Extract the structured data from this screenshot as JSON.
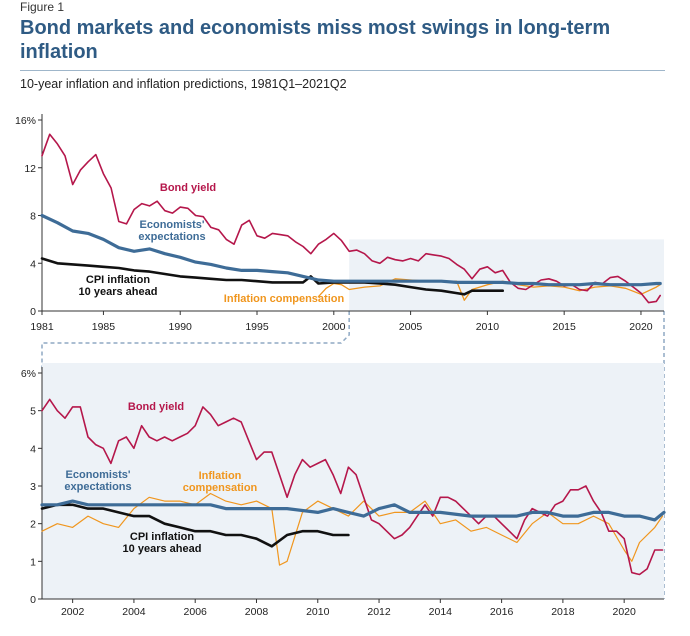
{
  "figure_label": "Figure 1",
  "title": "Bond markets and economists miss most swings in long-term inflation",
  "subtitle": "10-year inflation and inflation predictions, 1981Q1–2021Q2",
  "colors": {
    "bond": "#b5174b",
    "econ": "#3e6c97",
    "cpi": "#111111",
    "comp": "#f0961e",
    "shade": "#edf2f7",
    "frame": "#8fa9c4"
  },
  "chart_data": [
    {
      "type": "line",
      "panel": "top",
      "xlim": [
        1981,
        2021.5
      ],
      "ylim": [
        0,
        16
      ],
      "x_ticks": [
        "1981",
        "1985",
        "1990",
        "1995",
        "2000",
        "2005",
        "2010",
        "2015",
        "2020"
      ],
      "x_tick_values": [
        1981,
        1985,
        1990,
        1995,
        2000,
        2005,
        2010,
        2015,
        2020
      ],
      "y_ticks": [
        "0",
        "4",
        "8",
        "12",
        "16%"
      ],
      "y_tick_values": [
        0,
        4,
        8,
        12,
        16
      ],
      "shaded_range": [
        2001,
        2021.5
      ],
      "series": [
        {
          "name": "Bond yield",
          "key": "bond",
          "x": [
            1981,
            1981.5,
            1982,
            1982.5,
            1983,
            1983.5,
            1984,
            1984.5,
            1985,
            1985.5,
            1986,
            1986.5,
            1987,
            1987.5,
            1988,
            1988.5,
            1989,
            1989.5,
            1990,
            1990.5,
            1991,
            1991.5,
            1992,
            1992.5,
            1993,
            1993.5,
            1994,
            1994.5,
            1995,
            1995.5,
            1996,
            1996.5,
            1997,
            1997.5,
            1998,
            1998.5,
            1999,
            1999.5,
            2000,
            2000.5,
            2001,
            2001.5,
            2002,
            2002.5,
            2003,
            2003.5,
            2004,
            2004.5,
            2005,
            2005.5,
            2006,
            2006.5,
            2007,
            2007.5,
            2008,
            2008.5,
            2009,
            2009.5,
            2010,
            2010.5,
            2011,
            2011.5,
            2012,
            2012.5,
            2013,
            2013.5,
            2014,
            2014.5,
            2015,
            2015.5,
            2016,
            2016.5,
            2017,
            2017.5,
            2018,
            2018.5,
            2019,
            2019.5,
            2020,
            2020.5,
            2021,
            2021.25
          ],
          "y": [
            13.0,
            14.8,
            14.0,
            13.0,
            10.6,
            11.8,
            12.5,
            13.1,
            11.5,
            10.3,
            7.5,
            7.3,
            8.5,
            9.0,
            8.8,
            9.2,
            8.4,
            8.2,
            8.7,
            8.6,
            8.0,
            7.9,
            7.0,
            6.8,
            6.0,
            5.6,
            7.2,
            7.6,
            6.3,
            6.1,
            6.5,
            6.4,
            6.3,
            5.8,
            5.4,
            4.8,
            5.6,
            6.0,
            6.5,
            5.9,
            5.0,
            5.1,
            4.8,
            4.2,
            4.0,
            4.5,
            4.3,
            4.2,
            4.4,
            4.2,
            4.8,
            4.7,
            4.6,
            4.4,
            3.9,
            3.5,
            2.7,
            3.5,
            3.7,
            3.2,
            3.4,
            2.4,
            1.9,
            1.8,
            2.2,
            2.6,
            2.7,
            2.5,
            2.1,
            2.2,
            1.8,
            1.7,
            2.4,
            2.3,
            2.8,
            2.9,
            2.5,
            2.0,
            1.5,
            0.7,
            0.8,
            1.3
          ]
        },
        {
          "name": "Economists' expectations",
          "key": "econ",
          "x": [
            1981,
            1982,
            1983,
            1984,
            1985,
            1986,
            1987,
            1988,
            1989,
            1990,
            1991,
            1992,
            1993,
            1994,
            1995,
            1996,
            1997,
            1998,
            1999,
            2000,
            2001,
            2002,
            2003,
            2004,
            2005,
            2006,
            2007,
            2008,
            2009,
            2010,
            2011,
            2012,
            2013,
            2014,
            2015,
            2016,
            2017,
            2018,
            2019,
            2020,
            2021,
            2021.25
          ],
          "y": [
            8.0,
            7.4,
            6.7,
            6.5,
            6.0,
            5.3,
            5.0,
            5.2,
            4.8,
            4.5,
            4.1,
            3.9,
            3.6,
            3.4,
            3.4,
            3.3,
            3.2,
            2.9,
            2.6,
            2.5,
            2.5,
            2.5,
            2.5,
            2.5,
            2.5,
            2.5,
            2.5,
            2.4,
            2.4,
            2.4,
            2.4,
            2.3,
            2.3,
            2.2,
            2.2,
            2.2,
            2.3,
            2.2,
            2.2,
            2.2,
            2.3,
            2.3
          ]
        },
        {
          "name": "CPI inflation\n10 years ahead",
          "key": "cpi",
          "x": [
            1981,
            1982,
            1983,
            1984,
            1985,
            1986,
            1987,
            1988,
            1989,
            1990,
            1991,
            1992,
            1993,
            1994,
            1995,
            1996,
            1997,
            1998,
            1998.5,
            1999,
            2000,
            2001,
            2002,
            2003,
            2004,
            2005,
            2006,
            2007,
            2008,
            2008.5,
            2009,
            2010,
            2011
          ],
          "y": [
            4.4,
            4.0,
            3.9,
            3.8,
            3.7,
            3.6,
            3.4,
            3.3,
            3.1,
            2.9,
            2.8,
            2.7,
            2.6,
            2.6,
            2.5,
            2.4,
            2.4,
            2.4,
            2.9,
            2.3,
            2.4,
            2.4,
            2.4,
            2.3,
            2.2,
            2.0,
            1.8,
            1.7,
            1.5,
            1.4,
            1.7,
            1.7,
            1.7
          ]
        },
        {
          "name": "Inflation compensation",
          "key": "comp",
          "x": [
            1999,
            1999.5,
            2000,
            2000.5,
            2001,
            2002,
            2003,
            2004,
            2005,
            2006,
            2007,
            2008,
            2008.5,
            2009,
            2010,
            2011,
            2012,
            2013,
            2014,
            2015,
            2016,
            2017,
            2018,
            2019,
            2020,
            2021,
            2021.25
          ],
          "y": [
            1.2,
            1.9,
            2.3,
            2.2,
            1.8,
            2.0,
            2.1,
            2.7,
            2.6,
            2.5,
            2.5,
            2.5,
            0.9,
            1.8,
            2.2,
            2.5,
            2.2,
            2.0,
            2.1,
            2.0,
            1.7,
            2.0,
            2.1,
            1.9,
            1.4,
            2.0,
            2.2
          ]
        }
      ],
      "labels": {
        "bond": "Bond yield",
        "econ": "Economists'\nexpectations",
        "cpi": "CPI inflation\n10 years ahead",
        "comp": "Inflation compensation"
      }
    },
    {
      "type": "line",
      "panel": "bottom",
      "xlim": [
        2001,
        2021.3
      ],
      "ylim": [
        0,
        6
      ],
      "x_ticks": [
        "2002",
        "2004",
        "2006",
        "2008",
        "2010",
        "2012",
        "2014",
        "2016",
        "2018",
        "2020"
      ],
      "x_tick_values": [
        2002,
        2004,
        2006,
        2008,
        2010,
        2012,
        2014,
        2016,
        2018,
        2020
      ],
      "y_ticks": [
        "0",
        "1",
        "2",
        "3",
        "4",
        "5",
        "6%"
      ],
      "y_tick_values": [
        0,
        1,
        2,
        3,
        4,
        5,
        6
      ],
      "series": [
        {
          "name": "Bond yield",
          "key": "bond",
          "x": [
            2001,
            2001.25,
            2001.5,
            2001.75,
            2002,
            2002.25,
            2002.5,
            2002.75,
            2003,
            2003.25,
            2003.5,
            2003.75,
            2004,
            2004.25,
            2004.5,
            2004.75,
            2005,
            2005.25,
            2005.5,
            2005.75,
            2006,
            2006.25,
            2006.5,
            2006.75,
            2007,
            2007.25,
            2007.5,
            2007.75,
            2008,
            2008.25,
            2008.5,
            2008.75,
            2009,
            2009.25,
            2009.5,
            2009.75,
            2010,
            2010.25,
            2010.5,
            2010.75,
            2011,
            2011.25,
            2011.5,
            2011.75,
            2012,
            2012.25,
            2012.5,
            2012.75,
            2013,
            2013.25,
            2013.5,
            2013.75,
            2014,
            2014.25,
            2014.5,
            2014.75,
            2015,
            2015.25,
            2015.5,
            2015.75,
            2016,
            2016.25,
            2016.5,
            2016.75,
            2017,
            2017.25,
            2017.5,
            2017.75,
            2018,
            2018.25,
            2018.5,
            2018.75,
            2019,
            2019.25,
            2019.5,
            2019.75,
            2020,
            2020.25,
            2020.5,
            2020.75,
            2021,
            2021.25
          ],
          "y": [
            5.0,
            5.3,
            5.0,
            4.8,
            5.1,
            5.1,
            4.3,
            4.1,
            4.0,
            3.6,
            4.2,
            4.3,
            4.0,
            4.6,
            4.3,
            4.2,
            4.3,
            4.2,
            4.3,
            4.4,
            4.6,
            5.1,
            4.9,
            4.6,
            4.7,
            4.8,
            4.7,
            4.2,
            3.7,
            3.9,
            3.9,
            3.3,
            2.7,
            3.3,
            3.7,
            3.5,
            3.6,
            3.7,
            3.3,
            2.8,
            3.5,
            3.3,
            2.7,
            2.1,
            2.0,
            1.8,
            1.6,
            1.7,
            1.9,
            2.2,
            2.5,
            2.2,
            2.7,
            2.7,
            2.6,
            2.4,
            2.2,
            2.0,
            2.2,
            2.2,
            2.0,
            1.8,
            1.6,
            2.1,
            2.4,
            2.3,
            2.2,
            2.5,
            2.6,
            2.9,
            2.9,
            3.0,
            2.6,
            2.3,
            1.8,
            1.8,
            1.6,
            0.7,
            0.65,
            0.8,
            1.3,
            1.3
          ]
        },
        {
          "name": "Economists' expectations",
          "key": "econ",
          "x": [
            2001,
            2001.5,
            2002,
            2002.5,
            2003,
            2004,
            2005,
            2006,
            2006.5,
            2007,
            2008,
            2009,
            2010,
            2010.5,
            2011,
            2011.5,
            2012,
            2012.5,
            2013,
            2014,
            2015,
            2015.5,
            2016,
            2016.5,
            2017,
            2017.5,
            2018,
            2018.5,
            2019,
            2019.5,
            2020,
            2020.5,
            2021,
            2021.3
          ],
          "y": [
            2.5,
            2.5,
            2.6,
            2.5,
            2.5,
            2.5,
            2.5,
            2.5,
            2.5,
            2.4,
            2.4,
            2.4,
            2.3,
            2.4,
            2.3,
            2.2,
            2.4,
            2.5,
            2.3,
            2.3,
            2.2,
            2.2,
            2.2,
            2.2,
            2.3,
            2.3,
            2.2,
            2.2,
            2.3,
            2.3,
            2.2,
            2.2,
            2.1,
            2.3
          ]
        },
        {
          "name": "CPI inflation\n10 years ahead",
          "key": "cpi",
          "x": [
            2001,
            2001.5,
            2002,
            2002.5,
            2003,
            2003.5,
            2004,
            2004.5,
            2005,
            2005.5,
            2006,
            2006.5,
            2007,
            2007.5,
            2008,
            2008.5,
            2009,
            2009.5,
            2010,
            2010.5,
            2011
          ],
          "y": [
            2.4,
            2.5,
            2.5,
            2.4,
            2.4,
            2.3,
            2.2,
            2.2,
            2.0,
            1.9,
            1.8,
            1.8,
            1.7,
            1.7,
            1.6,
            1.4,
            1.7,
            1.8,
            1.8,
            1.7,
            1.7
          ]
        },
        {
          "name": "Inflation compensation",
          "key": "comp",
          "x": [
            2001,
            2001.5,
            2002,
            2002.5,
            2003,
            2003.5,
            2004,
            2004.5,
            2005,
            2005.5,
            2006,
            2006.5,
            2007,
            2007.5,
            2008,
            2008.5,
            2008.75,
            2009,
            2009.5,
            2010,
            2010.5,
            2011,
            2011.5,
            2012,
            2012.5,
            2013,
            2013.5,
            2014,
            2014.5,
            2015,
            2015.5,
            2016,
            2016.5,
            2017,
            2017.5,
            2018,
            2018.5,
            2019,
            2019.5,
            2020,
            2020.25,
            2020.5,
            2021,
            2021.25
          ],
          "y": [
            1.8,
            2.0,
            1.9,
            2.2,
            2.0,
            1.9,
            2.4,
            2.7,
            2.6,
            2.6,
            2.5,
            2.8,
            2.6,
            2.5,
            2.6,
            2.4,
            0.9,
            1.0,
            2.3,
            2.6,
            2.4,
            2.2,
            2.6,
            2.2,
            2.3,
            2.3,
            2.6,
            2.0,
            2.1,
            1.8,
            1.9,
            1.7,
            1.5,
            2.0,
            2.3,
            2.0,
            2.0,
            2.2,
            2.0,
            1.3,
            1.0,
            1.5,
            1.9,
            2.2
          ]
        }
      ],
      "labels": {
        "bond": "Bond yield",
        "econ": "Economists'\nexpectations",
        "cpi": "CPI inflation\n10 years ahead",
        "comp": "Inflation\ncompensation"
      }
    }
  ]
}
